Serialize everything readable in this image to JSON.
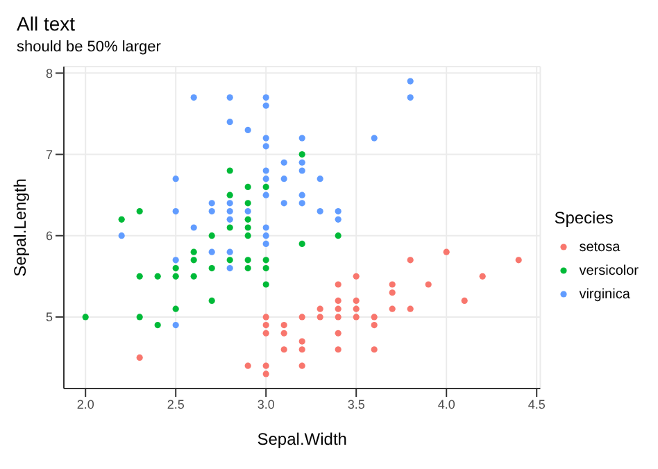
{
  "chart_data": {
    "type": "scatter",
    "title": "All text",
    "subtitle": "should be 50% larger",
    "xlabel": "Sepal.Width",
    "ylabel": "Sepal.Length",
    "legend_title": "Species",
    "legend": "right",
    "grid": true,
    "marker": "circle",
    "xlim": [
      1.88,
      4.52
    ],
    "xticks": [
      {
        "value": 2,
        "label": "2.0"
      },
      {
        "value": 2.5,
        "label": "2.5"
      },
      {
        "value": 3,
        "label": "3.0"
      },
      {
        "value": 3.5,
        "label": "3.5"
      },
      {
        "value": 4,
        "label": "4.0"
      },
      {
        "value": 4.5,
        "label": "4.5"
      }
    ],
    "ylim": [
      4.12,
      8.08
    ],
    "yticks": [
      5,
      6,
      7,
      8
    ],
    "series": [
      {
        "name": "setosa",
        "color": "#f8766d",
        "x": [
          3.5,
          3.0,
          3.2,
          3.1,
          3.6,
          3.9,
          3.4,
          3.4,
          2.9,
          3.1,
          3.7,
          3.4,
          3.0,
          3.0,
          4.0,
          4.4,
          3.8,
          3.8,
          3.4,
          3.7,
          3.6,
          3.3,
          3.0,
          3.5,
          3.4,
          3.1,
          4.1,
          4.2,
          3.2,
          3.5,
          3.6,
          3.0,
          3.4,
          3.5,
          2.3,
          3.2,
          3.2,
          3.7,
          3.3
        ],
        "values": [
          5.1,
          4.9,
          4.7,
          4.6,
          5.0,
          5.4,
          4.6,
          5.0,
          4.4,
          4.9,
          5.4,
          4.8,
          4.8,
          4.3,
          5.8,
          5.7,
          5.7,
          5.1,
          5.4,
          5.1,
          4.6,
          5.1,
          5.0,
          5.2,
          5.2,
          4.8,
          5.2,
          5.5,
          5.0,
          5.5,
          4.9,
          4.4,
          5.1,
          5.0,
          4.5,
          4.4,
          4.6,
          5.3,
          5.0
        ]
      },
      {
        "name": "versicolor",
        "color": "#00ba38",
        "x": [
          3.2,
          2.3,
          2.8,
          2.8,
          2.4,
          2.9,
          2.7,
          2.0,
          2.9,
          2.9,
          3.0,
          2.2,
          2.5,
          3.2,
          2.8,
          2.9,
          3.0,
          2.8,
          2.9,
          2.6,
          2.4,
          2.7,
          3.0,
          3.4,
          2.3,
          2.5,
          2.6,
          2.6,
          2.3,
          2.7,
          3.0,
          2.9,
          2.9,
          2.5
        ],
        "values": [
          7.0,
          5.5,
          6.5,
          5.7,
          4.9,
          6.6,
          5.2,
          5.0,
          6.1,
          5.6,
          5.6,
          6.2,
          5.6,
          5.9,
          6.1,
          6.4,
          6.6,
          6.8,
          6.0,
          5.7,
          5.5,
          6.0,
          5.4,
          6.0,
          6.3,
          5.5,
          5.5,
          5.8,
          5.0,
          5.6,
          5.7,
          5.7,
          6.2,
          5.1
        ]
      },
      {
        "name": "virginica",
        "color": "#619cff",
        "x": [
          3.3,
          2.7,
          3.0,
          2.9,
          3.0,
          3.0,
          2.5,
          2.9,
          2.5,
          3.6,
          3.2,
          2.7,
          3.0,
          2.5,
          2.8,
          3.2,
          3.8,
          2.6,
          2.2,
          3.2,
          2.8,
          2.8,
          2.7,
          3.3,
          3.2,
          2.8,
          3.0,
          2.8,
          3.0,
          2.8,
          3.8,
          2.8,
          2.6,
          3.0,
          3.4,
          3.1,
          3.0,
          3.1,
          3.1,
          3.2,
          3.0,
          2.5,
          3.4,
          3.0
        ],
        "values": [
          6.3,
          5.8,
          7.1,
          6.3,
          6.5,
          7.6,
          4.9,
          7.3,
          6.7,
          7.2,
          6.5,
          6.4,
          6.8,
          5.7,
          5.8,
          6.4,
          7.7,
          7.7,
          6.0,
          6.9,
          5.6,
          7.7,
          6.3,
          6.7,
          7.2,
          6.2,
          6.1,
          6.4,
          7.2,
          7.4,
          7.9,
          6.3,
          6.1,
          7.7,
          6.3,
          6.4,
          6.0,
          6.9,
          6.7,
          6.8,
          6.7,
          6.3,
          6.2,
          5.9
        ]
      }
    ]
  }
}
